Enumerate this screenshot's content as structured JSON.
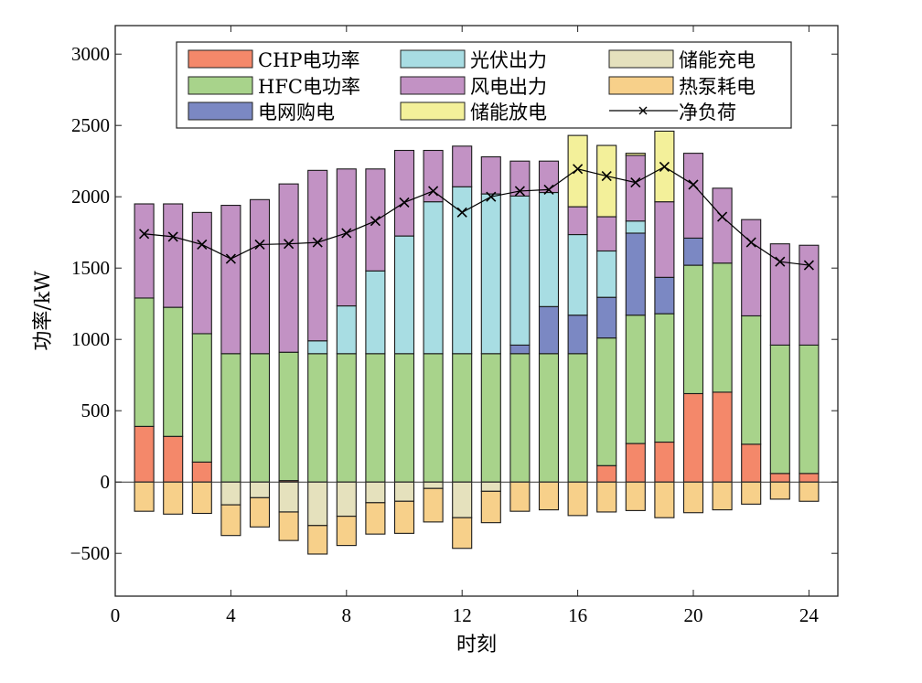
{
  "chart_data": {
    "type": "bar",
    "stacked": true,
    "title": "",
    "xlabel": "时刻",
    "ylabel": "功率/kW",
    "xlim": [
      0,
      25
    ],
    "ylim": [
      -800,
      3200
    ],
    "xticks": [
      0,
      4,
      8,
      12,
      16,
      20,
      24
    ],
    "yticks": [
      -500,
      0,
      500,
      1000,
      1500,
      2000,
      2500,
      3000
    ],
    "grid": false,
    "legend_position": "top-center",
    "x": [
      1,
      2,
      3,
      4,
      5,
      6,
      7,
      8,
      9,
      10,
      11,
      12,
      13,
      14,
      15,
      16,
      17,
      18,
      19,
      20,
      21,
      22,
      23,
      24
    ],
    "series": [
      {
        "name": "CHP电功率",
        "color": "#f4886a",
        "stack": "positive",
        "values": [
          390,
          320,
          140,
          0,
          0,
          10,
          0,
          0,
          0,
          0,
          0,
          0,
          0,
          0,
          0,
          0,
          115,
          270,
          280,
          620,
          630,
          265,
          60,
          60
        ]
      },
      {
        "name": "HFC电功率",
        "color": "#a8d38b",
        "stack": "positive",
        "values": [
          900,
          905,
          900,
          900,
          900,
          900,
          900,
          900,
          900,
          900,
          900,
          900,
          900,
          900,
          900,
          900,
          895,
          900,
          900,
          900,
          905,
          900,
          900,
          900
        ]
      },
      {
        "name": "电网购电",
        "color": "#7b88c3",
        "stack": "positive",
        "values": [
          0,
          0,
          0,
          0,
          0,
          0,
          0,
          0,
          0,
          0,
          0,
          0,
          0,
          60,
          330,
          270,
          285,
          575,
          255,
          190,
          0,
          0,
          0,
          0
        ]
      },
      {
        "name": "光伏出力",
        "color": "#a8dde3",
        "stack": "positive",
        "values": [
          0,
          0,
          0,
          0,
          0,
          0,
          90,
          335,
          580,
          825,
          1065,
          1170,
          1120,
          1045,
          800,
          565,
          325,
          85,
          0,
          0,
          0,
          0,
          0,
          0
        ]
      },
      {
        "name": "风电出力",
        "color": "#c292c4",
        "stack": "positive",
        "values": [
          660,
          725,
          850,
          1040,
          1080,
          1180,
          1195,
          960,
          715,
          600,
          360,
          285,
          260,
          245,
          220,
          195,
          240,
          460,
          530,
          595,
          525,
          675,
          710,
          700
        ]
      },
      {
        "name": "储能放电",
        "color": "#f3f09a",
        "stack": "positive",
        "values": [
          0,
          0,
          0,
          0,
          0,
          0,
          0,
          0,
          0,
          0,
          0,
          0,
          0,
          0,
          0,
          500,
          500,
          15,
          495,
          0,
          0,
          0,
          0,
          0
        ]
      },
      {
        "name": "储能充电",
        "color": "#e5e1bd",
        "stack": "negative",
        "values": [
          0,
          0,
          0,
          -160,
          -110,
          -210,
          -305,
          -240,
          -145,
          -135,
          -45,
          -250,
          -65,
          0,
          0,
          0,
          0,
          0,
          0,
          0,
          0,
          0,
          0,
          0
        ]
      },
      {
        "name": "热泵耗电",
        "color": "#f7d08a",
        "stack": "negative",
        "values": [
          -205,
          -225,
          -220,
          -215,
          -205,
          -200,
          -200,
          -205,
          -220,
          -225,
          -235,
          -215,
          -220,
          -205,
          -195,
          -235,
          -210,
          -200,
          -250,
          -215,
          -195,
          -155,
          -120,
          -135
        ]
      }
    ],
    "line_series": {
      "name": "净负荷",
      "color": "#000000",
      "marker": "x",
      "values": [
        1740,
        1720,
        1665,
        1565,
        1665,
        1670,
        1680,
        1745,
        1830,
        1960,
        2040,
        1890,
        2000,
        2040,
        2050,
        2195,
        2145,
        2100,
        2210,
        2085,
        1860,
        1680,
        1545,
        1520
      ]
    },
    "legend_order": [
      "CHP电功率",
      "光伏出力",
      "储能充电",
      "HFC电功率",
      "风电出力",
      "热泵耗电",
      "电网购电",
      "储能放电",
      "净负荷"
    ]
  }
}
